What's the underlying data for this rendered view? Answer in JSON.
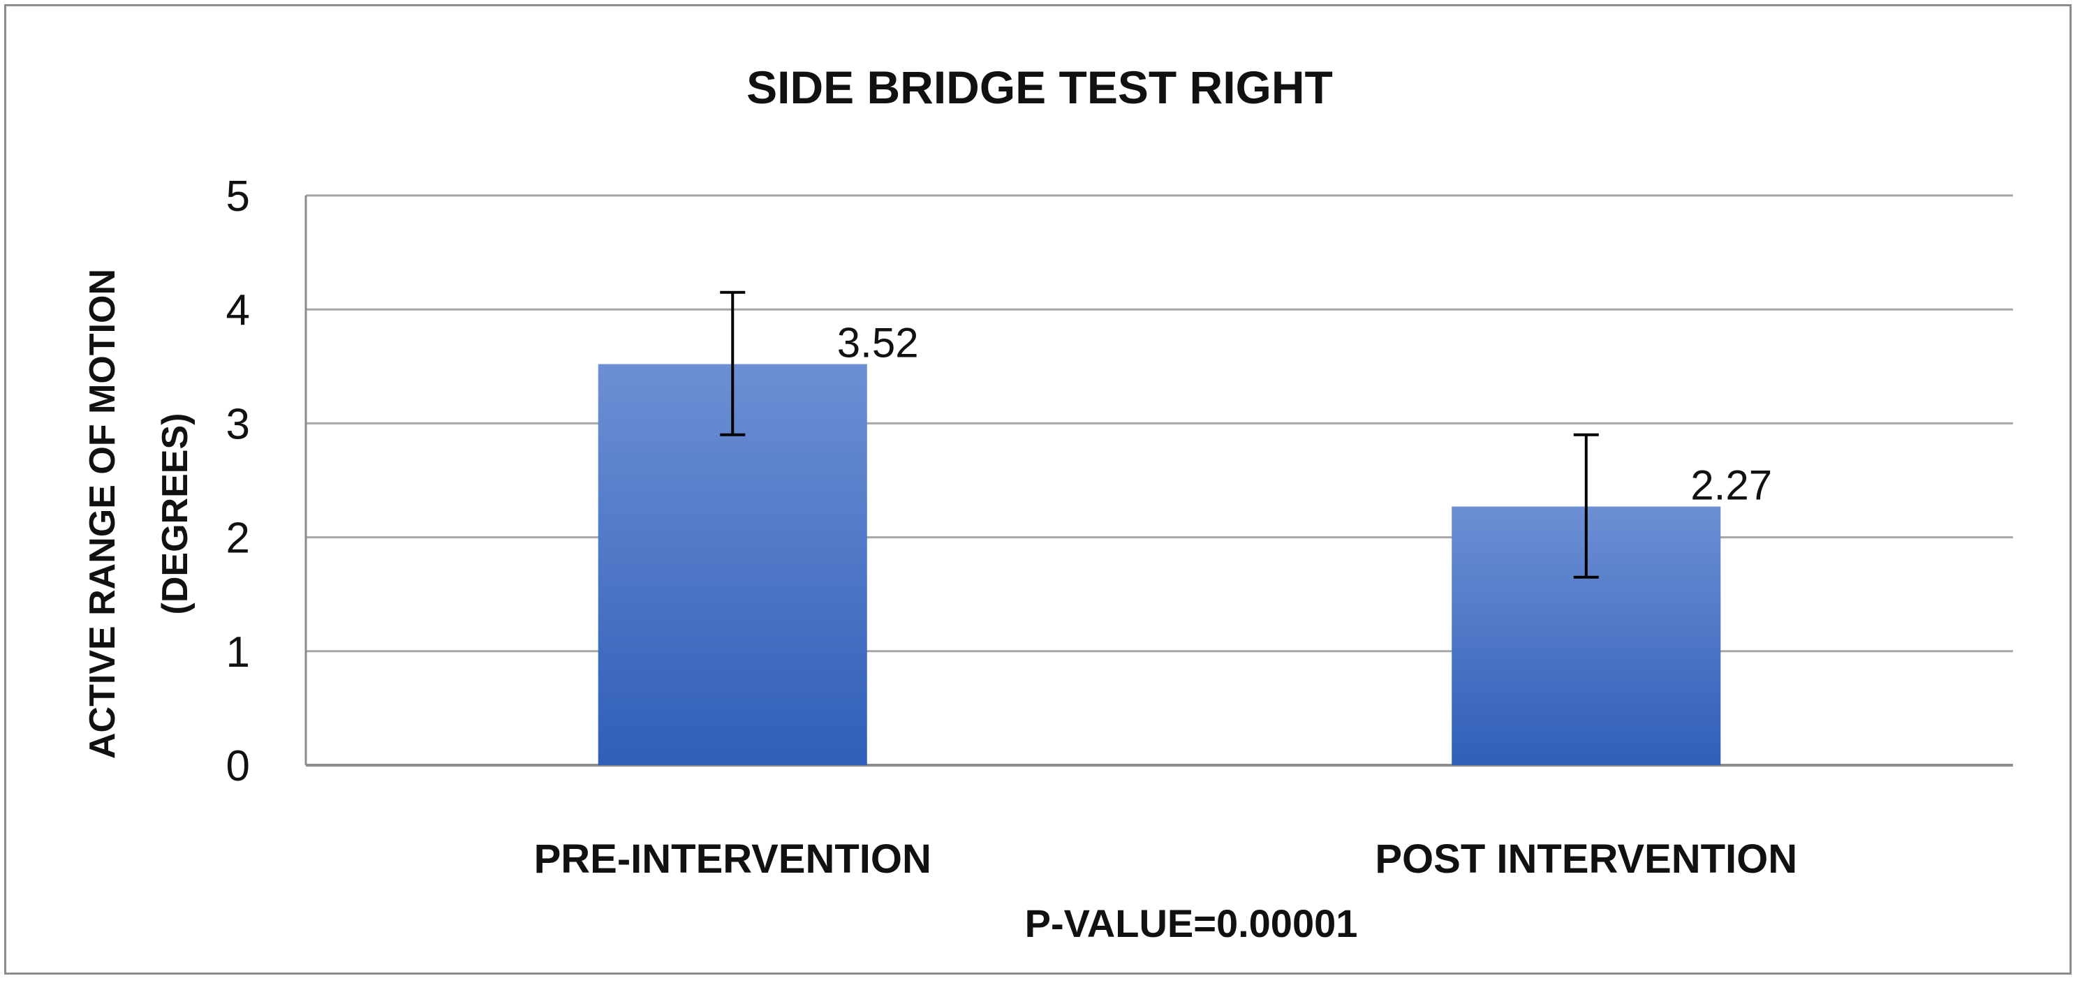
{
  "chart_data": {
    "type": "bar",
    "title": "SIDE BRIDGE TEST RIGHT",
    "xlabel": "P-VALUE=0.00001",
    "ylabel_lines": [
      "ACTIVE RANGE OF MOTION",
      "(DEGREES)"
    ],
    "categories": [
      "PRE-INTERVENTION",
      "POST INTERVENTION"
    ],
    "values": [
      3.52,
      2.27
    ],
    "data_labels": [
      "3.52",
      "2.27"
    ],
    "error_bars": [
      {
        "low": 2.9,
        "high": 4.15
      },
      {
        "low": 1.65,
        "high": 2.9
      }
    ],
    "ylim": [
      0,
      5
    ],
    "yticks": [
      "0",
      "1",
      "2",
      "3",
      "4",
      "5"
    ],
    "grid": true,
    "legend": "none",
    "colors": {
      "bar_top": "#6d8fd4",
      "bar_bottom": "#2f5fb8",
      "grid": "#a6a6a6",
      "axis": "#8c8c8c",
      "error_bar": "#000000",
      "frame": "#8c8c8c"
    }
  }
}
